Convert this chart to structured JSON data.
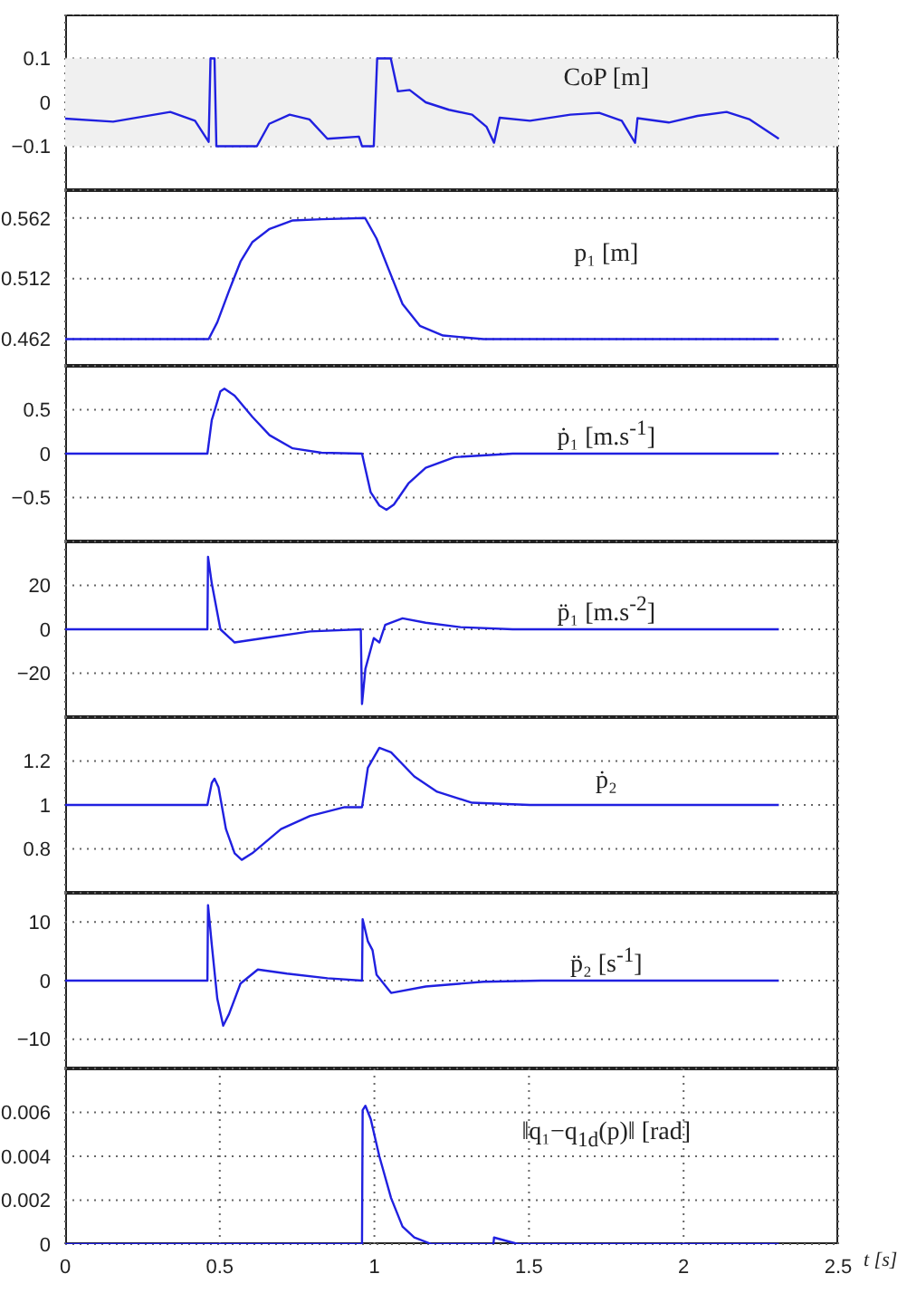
{
  "chart_data": [
    {
      "type": "line",
      "annotations": [
        "CoP [m]"
      ],
      "xlim": [
        0,
        2.5
      ],
      "xticks": [
        0,
        0.5,
        1,
        1.5,
        2,
        2.5
      ],
      "ylim": [
        -0.2,
        0.2
      ],
      "yticks": [
        -0.1,
        0,
        0.1
      ],
      "grid": true,
      "tick_labels": "y",
      "bands": [
        {
          "axis": "y",
          "from": -0.1,
          "to": 0.1,
          "color": "#f0f0f0"
        }
      ],
      "x": [
        0,
        0.155,
        0.34,
        0.42,
        0.464,
        0.47,
        0.483,
        0.489,
        0.62,
        0.66,
        0.726,
        0.79,
        0.848,
        0.95,
        0.96,
        0.998,
        1.009,
        1.053,
        1.076,
        1.114,
        1.166,
        1.241,
        1.316,
        1.363,
        1.387,
        1.405,
        1.503,
        1.634,
        1.727,
        1.8,
        1.843,
        1.851,
        1.952,
        2.045,
        2.139,
        2.214,
        2.308
      ],
      "values": [
        -0.037,
        -0.044,
        -0.022,
        -0.042,
        -0.09,
        0.1,
        0.1,
        -0.1,
        -0.1,
        -0.049,
        -0.028,
        -0.039,
        -0.083,
        -0.078,
        -0.1,
        -0.1,
        0.1,
        0.1,
        0.025,
        0.028,
        0,
        -0.017,
        -0.028,
        -0.056,
        -0.092,
        -0.035,
        -0.042,
        -0.028,
        -0.024,
        -0.042,
        -0.092,
        -0.036,
        -0.046,
        -0.031,
        -0.022,
        -0.039,
        -0.083
      ],
      "color": "#2020e0"
    },
    {
      "type": "line",
      "annotations": [
        "p₁ [m]"
      ],
      "xlim": [
        0,
        2.5
      ],
      "xticks": [
        0,
        0.5,
        1,
        1.5,
        2,
        2.5
      ],
      "ylim": [
        0.44,
        0.585
      ],
      "yticks": [
        0.462,
        0.512,
        0.562
      ],
      "grid": true,
      "tick_labels": "y",
      "x": [
        0,
        0.464,
        0.492,
        0.53,
        0.567,
        0.605,
        0.661,
        0.736,
        0.829,
        0.97,
        1.007,
        1.044,
        1.091,
        1.147,
        1.222,
        1.353,
        2.308
      ],
      "values": [
        0.462,
        0.462,
        0.476,
        0.502,
        0.526,
        0.542,
        0.553,
        0.56,
        0.561,
        0.562,
        0.545,
        0.521,
        0.491,
        0.473,
        0.465,
        0.462,
        0.462
      ],
      "color": "#2020e0"
    },
    {
      "type": "line",
      "annotations": [
        "ṗ₁ [m.s$^{-1}$]"
      ],
      "xlim": [
        0,
        2.5
      ],
      "xticks": [
        0,
        0.5,
        1,
        1.5,
        2,
        2.5
      ],
      "ylim": [
        -1,
        1
      ],
      "yticks": [
        -0.5,
        0,
        0.5
      ],
      "grid": true,
      "tick_labels": "y",
      "x": [
        0,
        0.46,
        0.474,
        0.502,
        0.515,
        0.548,
        0.605,
        0.661,
        0.736,
        0.829,
        0.96,
        0.97,
        0.988,
        1.016,
        1.039,
        1.063,
        1.11,
        1.166,
        1.26,
        1.447,
        2.308
      ],
      "values": [
        0,
        0,
        0.38,
        0.71,
        0.74,
        0.66,
        0.42,
        0.21,
        0.06,
        0.01,
        0,
        -0.16,
        -0.44,
        -0.59,
        -0.64,
        -0.58,
        -0.34,
        -0.16,
        -0.04,
        0,
        0
      ],
      "color": "#2020e0"
    },
    {
      "type": "line",
      "annotations": [
        "p̈₁ [m.s$^{-2}$]"
      ],
      "xlim": [
        0,
        2.5
      ],
      "xticks": [
        0,
        0.5,
        1,
        1.5,
        2,
        2.5
      ],
      "ylim": [
        -40,
        40
      ],
      "yticks": [
        -20,
        0,
        20
      ],
      "grid": true,
      "tick_labels": "y",
      "x": [
        0,
        0.46,
        0.462,
        0.474,
        0.502,
        0.548,
        0.642,
        0.792,
        0.956,
        0.96,
        0.971,
        0.998,
        1.016,
        1.035,
        1.091,
        1.166,
        1.278,
        1.447,
        2.308
      ],
      "values": [
        0,
        0,
        33,
        21,
        0,
        -6,
        -4,
        -1,
        0,
        -34,
        -18,
        -4,
        -6,
        2,
        5,
        3,
        1,
        0,
        0
      ],
      "color": "#2020e0"
    },
    {
      "type": "line",
      "annotations": [
        "ṗ₂"
      ],
      "xlim": [
        0,
        2.5
      ],
      "xticks": [
        0,
        0.5,
        1,
        1.5,
        2,
        2.5
      ],
      "ylim": [
        0.6,
        1.4
      ],
      "yticks": [
        0.8,
        1,
        1.2
      ],
      "grid": true,
      "tick_labels": "y",
      "x": [
        0,
        0.46,
        0.474,
        0.483,
        0.496,
        0.52,
        0.548,
        0.571,
        0.605,
        0.698,
        0.792,
        0.904,
        0.96,
        0.979,
        1.016,
        1.054,
        1.129,
        1.203,
        1.316,
        1.503,
        2.308
      ],
      "values": [
        1,
        1,
        1.1,
        1.12,
        1.08,
        0.89,
        0.78,
        0.75,
        0.78,
        0.89,
        0.95,
        0.99,
        0.99,
        1.17,
        1.26,
        1.24,
        1.13,
        1.06,
        1.01,
        1,
        1
      ],
      "color": "#2020e0"
    },
    {
      "type": "line",
      "annotations": [
        "p̈₂ [s$^{-1}$]"
      ],
      "xlim": [
        0,
        2.5
      ],
      "xticks": [
        0,
        0.5,
        1,
        1.5,
        2,
        2.5
      ],
      "ylim": [
        -15,
        15
      ],
      "yticks": [
        -10,
        0,
        10
      ],
      "grid": true,
      "tick_labels": "y",
      "x": [
        0,
        0.46,
        0.462,
        0.474,
        0.492,
        0.511,
        0.53,
        0.567,
        0.623,
        0.717,
        0.848,
        0.96,
        0.962,
        0.979,
        0.994,
        1.007,
        1.054,
        1.166,
        1.353,
        1.54,
        2.308
      ],
      "values": [
        0,
        0,
        12.9,
        6.2,
        -3.1,
        -7.7,
        -5.7,
        -0.5,
        1.9,
        1.2,
        0.4,
        0,
        10.5,
        6.7,
        5.2,
        1,
        -2.1,
        -1,
        -0.2,
        0,
        0
      ],
      "color": "#2020e0"
    },
    {
      "type": "line",
      "annotations": [
        "‖q₁−q$_{1d}$(p)‖ [rad]"
      ],
      "xlabel": "t [s]",
      "xlim": [
        0,
        2.5
      ],
      "xticks": [
        0,
        0.5,
        1,
        1.5,
        2,
        2.5
      ],
      "ylim": [
        0,
        0.008
      ],
      "yticks": [
        0,
        0.002,
        0.004,
        0.006
      ],
      "grid": true,
      "x": [
        0,
        0.96,
        0.962,
        0.971,
        0.988,
        1.016,
        1.054,
        1.091,
        1.129,
        1.185,
        1.203,
        1.385,
        1.387,
        1.465,
        1.484,
        2.308
      ],
      "values": [
        0,
        0,
        0.0061,
        0.0063,
        0.0057,
        0.004,
        0.0021,
        0.0008,
        0.0003,
        0,
        0,
        0,
        0.0003,
        0,
        0,
        0
      ],
      "color": "#2020e0"
    }
  ]
}
